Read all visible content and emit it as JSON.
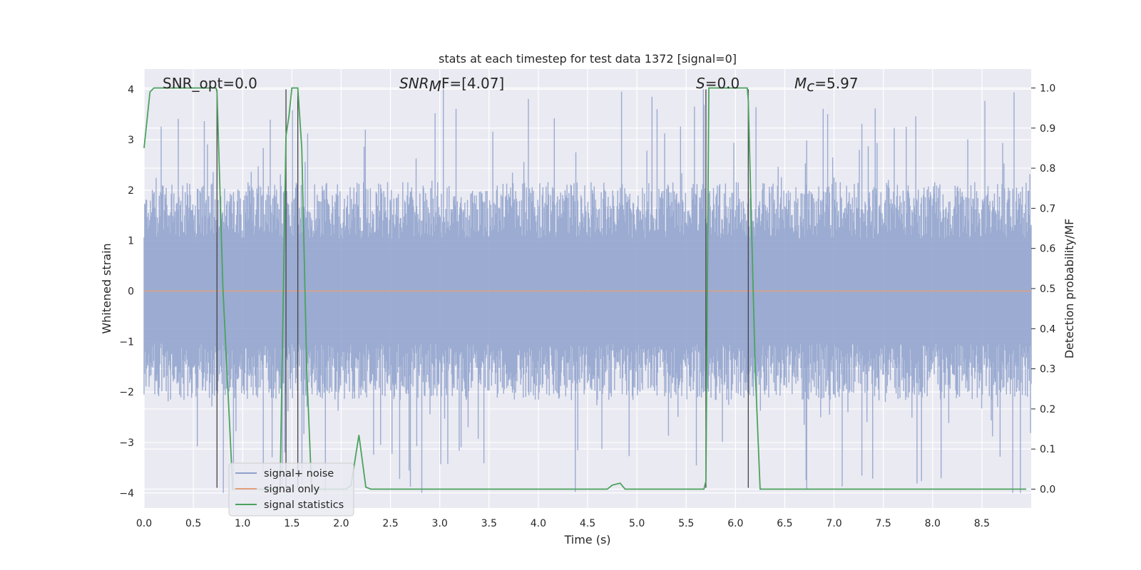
{
  "chart_data": {
    "type": "line",
    "title": "stats at each timestep for test data 1372 [signal=0]",
    "xlabel": "Time (s)",
    "ylabel_left": "Whitened strain",
    "ylabel_right": "Detection probability/MF",
    "xlim": [
      0,
      9.0
    ],
    "ylim_left": [
      -4.3,
      4.4
    ],
    "ylim_right": [
      -0.047,
      1.047
    ],
    "x_ticks": [
      "0.0",
      "0.5",
      "1.0",
      "1.5",
      "2.0",
      "2.5",
      "3.0",
      "3.5",
      "4.0",
      "4.5",
      "5.0",
      "5.5",
      "6.0",
      "6.5",
      "7.0",
      "7.5",
      "8.0",
      "8.5"
    ],
    "y_ticks_left": [
      "−4",
      "−3",
      "−2",
      "−1",
      "0",
      "1",
      "2",
      "3",
      "4"
    ],
    "y_ticks_right": [
      "0.0",
      "0.1",
      "0.2",
      "0.3",
      "0.4",
      "0.5",
      "0.6",
      "0.7",
      "0.8",
      "0.9",
      "1.0"
    ],
    "grid": true,
    "legend_position": "lower-left",
    "annotations": {
      "snr_opt": "SNR_opt=0.0",
      "snr_mf_sym": "SNR",
      "snr_mf_sub": "M",
      "snr_mf_rest": "F=[4.07]",
      "s_sym": "S",
      "s_rest": "=0.0",
      "mc_sym": "M",
      "mc_sub": "c",
      "mc_rest": "=5.97"
    },
    "vertical_lines_x": [
      0.74,
      1.44,
      1.56,
      5.7,
      6.13
    ],
    "vertical_lines_range": [
      -3.9,
      4.0
    ],
    "series": [
      {
        "name": "signal+ noise",
        "color": "#8da0cb",
        "typical_amplitude": 1.6,
        "peak_amplitude": 4.0
      },
      {
        "name": "signal only",
        "color": "#e1a07d",
        "values_constant": 0.0
      },
      {
        "name": "signal statistics",
        "color": "#4aa35c",
        "axis": "right",
        "x": [
          0.0,
          0.06,
          0.1,
          0.2,
          0.5,
          0.73,
          0.74,
          0.8,
          0.9,
          1.0,
          1.38,
          1.44,
          1.47,
          1.5,
          1.56,
          1.6,
          1.65,
          1.7,
          1.75,
          2.05,
          2.1,
          2.18,
          2.25,
          2.3,
          3.0,
          4.0,
          4.7,
          4.75,
          4.83,
          4.88,
          5.0,
          5.5,
          5.68,
          5.7,
          5.73,
          5.8,
          6.0,
          6.12,
          6.13,
          6.2,
          6.25,
          6.5,
          7.0,
          8.0,
          8.6,
          8.95
        ],
        "y": [
          0.85,
          0.99,
          1.0,
          1.0,
          1.0,
          1.0,
          0.99,
          0.5,
          0.0,
          0.0,
          0.0,
          0.88,
          0.93,
          1.0,
          1.0,
          0.85,
          0.3,
          0.0,
          0.0,
          0.0,
          0.01,
          0.135,
          0.005,
          0.0,
          0.0,
          0.0,
          0.0,
          0.01,
          0.015,
          0.0,
          0.0,
          0.0,
          0.0,
          0.02,
          1.0,
          1.0,
          1.0,
          1.0,
          0.97,
          0.3,
          0.0,
          0.0,
          0.0,
          0.0,
          0.0,
          0.0
        ]
      }
    ]
  }
}
